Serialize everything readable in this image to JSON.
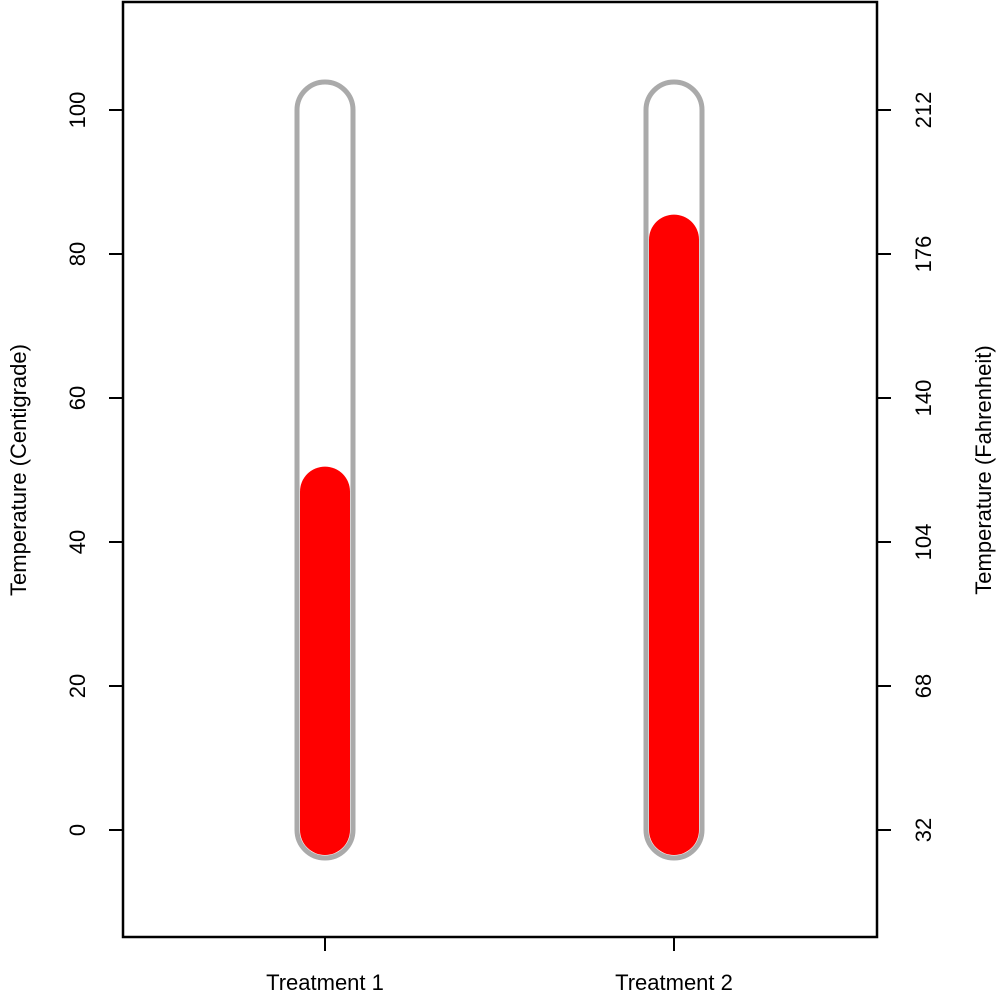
{
  "chart_data": {
    "type": "bar",
    "subtype": "thermometer",
    "categories": [
      "Treatment 1",
      "Treatment 2"
    ],
    "values": [
      47,
      82
    ],
    "ylabel": "Temperature (Centigrade)",
    "ylabel_right": "Temperature (Fahrenheit)",
    "ylim": [
      -15,
      115
    ],
    "yticks": [
      0,
      20,
      40,
      60,
      80,
      100
    ],
    "yticks_right": [
      32,
      68,
      104,
      140,
      176,
      212
    ],
    "tube_range": [
      0,
      100
    ],
    "grid": false,
    "colors": {
      "fill": "#ff0000",
      "tube": "#aaaaaa",
      "frame": "#000000"
    }
  }
}
